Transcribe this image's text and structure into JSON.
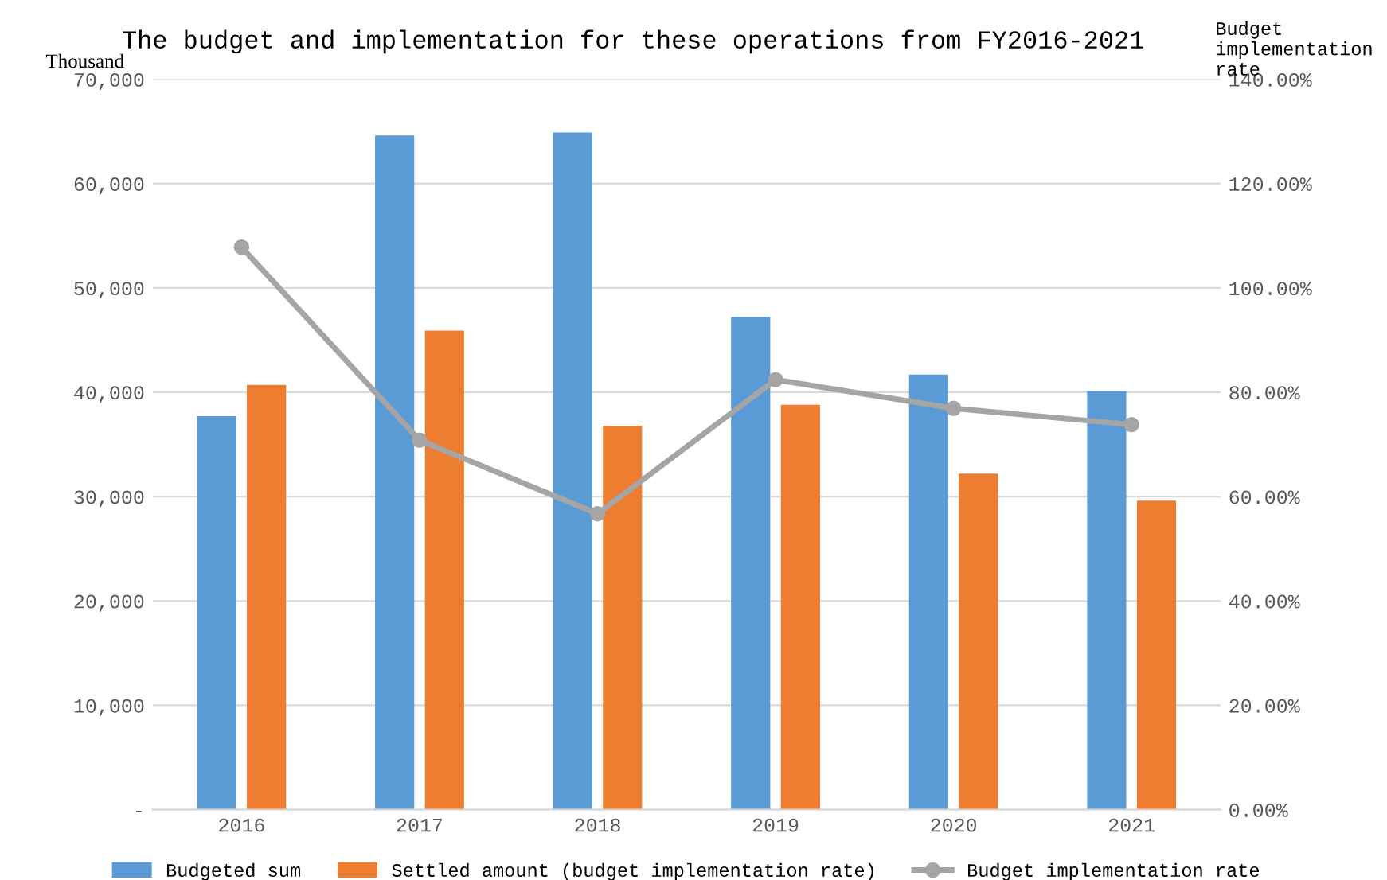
{
  "chart_data": {
    "type": "bar",
    "title": "The budget and implementation for these operations from FY2016-2021",
    "ylabel": "Thousand",
    "y2label": "Budget\nimplementation\nrate",
    "categories": [
      "2016",
      "2017",
      "2018",
      "2019",
      "2020",
      "2021"
    ],
    "series": [
      {
        "name": "Budgeted sum",
        "color": "#5b9bd5",
        "values": [
          37700,
          64600,
          64900,
          47200,
          41700,
          40100
        ]
      },
      {
        "name": "Settled amount (budget implementation rate)",
        "color": "#ed7d31",
        "values": [
          40700,
          45900,
          36800,
          38800,
          32200,
          29600
        ]
      },
      {
        "name": "Budget implementation rate",
        "type": "line",
        "axis": "y2",
        "color": "#a5a5a5",
        "marker": "circle",
        "values": [
          107.8,
          70.8,
          56.7,
          82.4,
          76.9,
          73.8
        ]
      }
    ],
    "ylim": [
      0,
      70000
    ],
    "yticks": [
      {
        "value": 0,
        "label": "-"
      },
      {
        "value": 10000,
        "label": "10,000"
      },
      {
        "value": 20000,
        "label": "20,000"
      },
      {
        "value": 30000,
        "label": "30,000"
      },
      {
        "value": 40000,
        "label": "40,000"
      },
      {
        "value": 50000,
        "label": "50,000"
      },
      {
        "value": 60000,
        "label": "60,000"
      },
      {
        "value": 70000,
        "label": "70,000"
      }
    ],
    "y2lim": [
      0,
      140
    ],
    "y2ticks": [
      {
        "value": 0,
        "label": "0.00%"
      },
      {
        "value": 20,
        "label": "20.00%"
      },
      {
        "value": 40,
        "label": "40.00%"
      },
      {
        "value": 60,
        "label": "60.00%"
      },
      {
        "value": 80,
        "label": "80.00%"
      },
      {
        "value": 100,
        "label": "100.00%"
      },
      {
        "value": 120,
        "label": "120.00%"
      },
      {
        "value": 140,
        "label": "140.00%"
      }
    ],
    "grid": "y",
    "legend": "bottom"
  }
}
